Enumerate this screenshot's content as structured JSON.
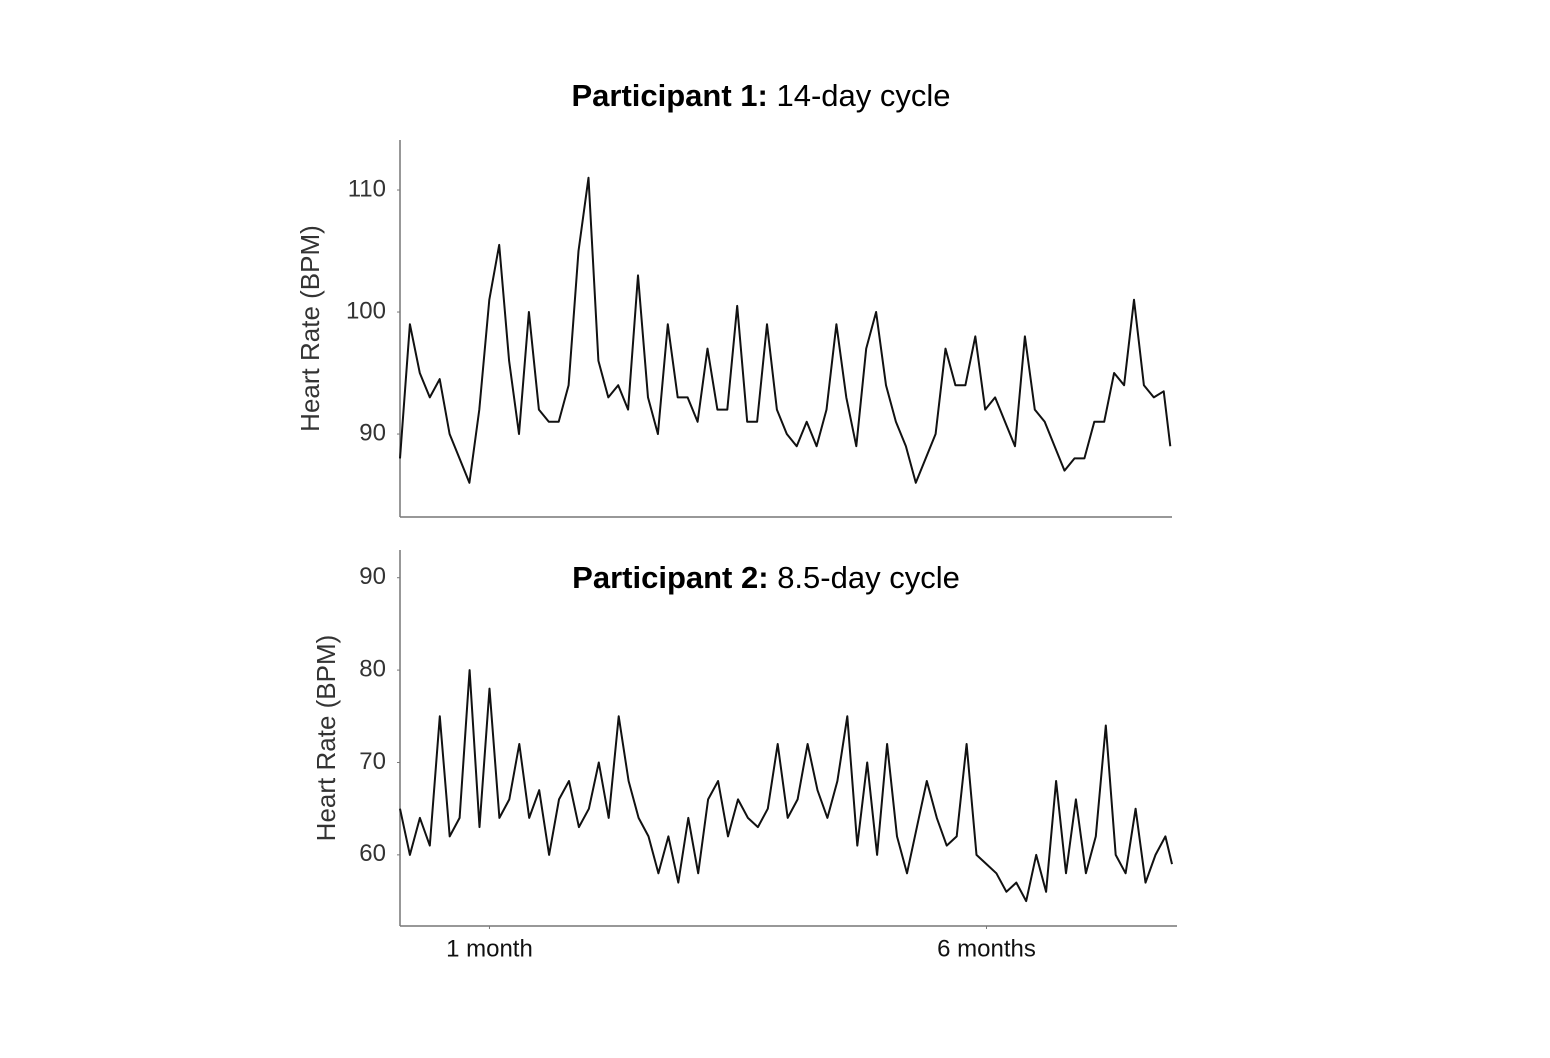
{
  "chart_data": [
    {
      "type": "line",
      "title": [
        "Participant 1:",
        "14-day cycle"
      ],
      "y_label": "Heart Rate (BPM)",
      "x": [
        3,
        6,
        9,
        12,
        15,
        18,
        21,
        24,
        27,
        30,
        33,
        36,
        39,
        42,
        45,
        48,
        51,
        54,
        57,
        60,
        63,
        66,
        69,
        72,
        75,
        78,
        81,
        84,
        87,
        90,
        93,
        96,
        99,
        102,
        105,
        108,
        111,
        114,
        117,
        120,
        123,
        126,
        129,
        132,
        135,
        138,
        141,
        144,
        147,
        150,
        153,
        156,
        159,
        162,
        165,
        168,
        171,
        174,
        177,
        180,
        183,
        186,
        189,
        192,
        195,
        198,
        201,
        204,
        207,
        210,
        213,
        216,
        219,
        222,
        225,
        228,
        231,
        234,
        236
      ],
      "series": [
        {
          "color": "#111111",
          "values": [
            88,
            99,
            95,
            93,
            94.5,
            90,
            88,
            86,
            92,
            101,
            105.5,
            96,
            90,
            100,
            92,
            91,
            91,
            94,
            105,
            111,
            96,
            93,
            94,
            92,
            103,
            93,
            90,
            99,
            93,
            93,
            91,
            97,
            92,
            92,
            100.5,
            91,
            91,
            99,
            92,
            90,
            89,
            91,
            89,
            92,
            99,
            93,
            89,
            97,
            100,
            94,
            91,
            89,
            86,
            88,
            90,
            97,
            94,
            94,
            98,
            92,
            93,
            91,
            89,
            98,
            92,
            91,
            89,
            87,
            88,
            88,
            91,
            91,
            95,
            94,
            101,
            94,
            93,
            93.5,
            89
          ]
        }
      ],
      "xlim": [
        3,
        236.5
      ],
      "ylim": [
        83.2,
        114.1
      ],
      "yticks": [
        90,
        100,
        110
      ]
    },
    {
      "type": "line",
      "title": [
        "Participant 2:",
        "8.5-day cycle"
      ],
      "y_label": "Heart Rate (BPM)",
      "x": [
        3,
        6,
        9,
        12,
        15,
        18,
        21,
        24,
        27,
        30,
        33,
        36,
        39,
        42,
        45,
        48,
        51,
        54,
        57,
        60,
        63,
        66,
        69,
        72,
        75,
        78,
        81,
        84,
        87,
        90,
        93,
        96,
        99,
        102,
        105,
        108,
        111,
        114,
        117,
        120,
        123,
        126,
        129,
        132,
        135,
        138,
        141,
        144,
        147,
        150,
        153,
        156,
        159,
        162,
        165,
        168,
        171,
        174,
        177,
        180,
        183,
        186,
        189,
        192,
        195,
        198,
        201,
        204,
        207,
        210,
        213,
        216,
        219,
        222,
        225,
        228,
        231,
        234,
        236
      ],
      "series": [
        {
          "color": "#111111",
          "values": [
            65,
            60,
            64,
            61,
            75,
            62,
            64,
            80,
            63,
            78,
            64,
            66,
            72,
            64,
            67,
            60,
            66,
            68,
            63,
            65,
            70,
            64,
            75,
            68,
            64,
            62,
            58,
            62,
            57,
            64,
            58,
            66,
            68,
            62,
            66,
            64,
            63,
            65,
            72,
            64,
            66,
            72,
            67,
            64,
            68,
            75,
            61,
            70,
            60,
            72,
            62,
            58,
            63,
            68,
            64,
            61,
            62,
            72,
            60,
            59,
            58,
            56,
            57,
            55,
            60,
            56,
            68,
            58,
            66,
            58,
            62,
            74,
            60,
            58,
            65,
            57,
            60,
            62,
            59
          ]
        }
      ],
      "xlim": [
        3,
        237.5
      ],
      "xticks": [
        {
          "value": 30,
          "label": "1 month"
        },
        {
          "value": 180,
          "label": "6 months"
        }
      ],
      "ylim": [
        52.3,
        93
      ],
      "yticks": [
        60,
        70,
        80,
        90
      ]
    }
  ]
}
